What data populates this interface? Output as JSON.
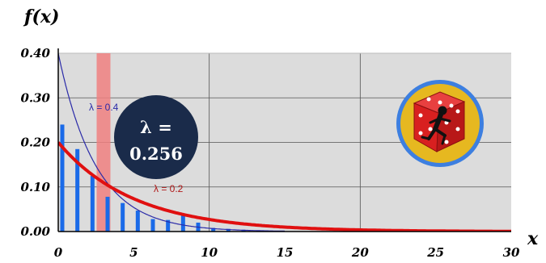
{
  "chart_data": {
    "type": "line",
    "title": "",
    "ylabel": "f(x)",
    "xlabel": "x",
    "xlim": [
      0,
      30
    ],
    "ylim": [
      0,
      0.4
    ],
    "x_ticks": [
      "0",
      "5",
      "10",
      "15",
      "20",
      "25",
      "30"
    ],
    "y_ticks": [
      "0.00",
      "0.10",
      "0.20",
      "0.30",
      "0.40"
    ],
    "grid": true,
    "series": [
      {
        "name": "λ = 0.4",
        "kind": "exponential_pdf",
        "lambda": 0.4,
        "x_max": 15,
        "color": "#2a2aa8"
      },
      {
        "name": "λ = 0.2",
        "kind": "exponential_pdf",
        "lambda": 0.2,
        "x_max": 30,
        "color": "#e01010"
      }
    ],
    "bars": {
      "x": [
        0,
        1,
        2,
        3,
        4,
        5,
        6,
        7,
        8,
        9,
        10,
        11,
        12,
        13,
        14
      ],
      "values": [
        0.24,
        0.185,
        0.125,
        0.078,
        0.064,
        0.047,
        0.028,
        0.026,
        0.036,
        0.02,
        0.008,
        0.006,
        0.004,
        0.002,
        0.001
      ],
      "color": "#1a6ae8"
    },
    "highlight_x": 3,
    "annotation": {
      "line1": "λ =",
      "line2": "0.256"
    },
    "colors": {
      "plot_bg": "#dcdcdc",
      "grid": "#555555",
      "highlight": "#f08080",
      "bubble": "#1a2b4a",
      "badge_ring": "#3d7fe0",
      "badge_fill": "#e6b820",
      "die": "#d82020"
    }
  },
  "labels": {
    "y_title": "f(x)",
    "x_title": "x",
    "curve_a": "λ = 0.4",
    "curve_b": "λ = 0.2"
  },
  "icons": {
    "badge": "running-dice-icon"
  }
}
